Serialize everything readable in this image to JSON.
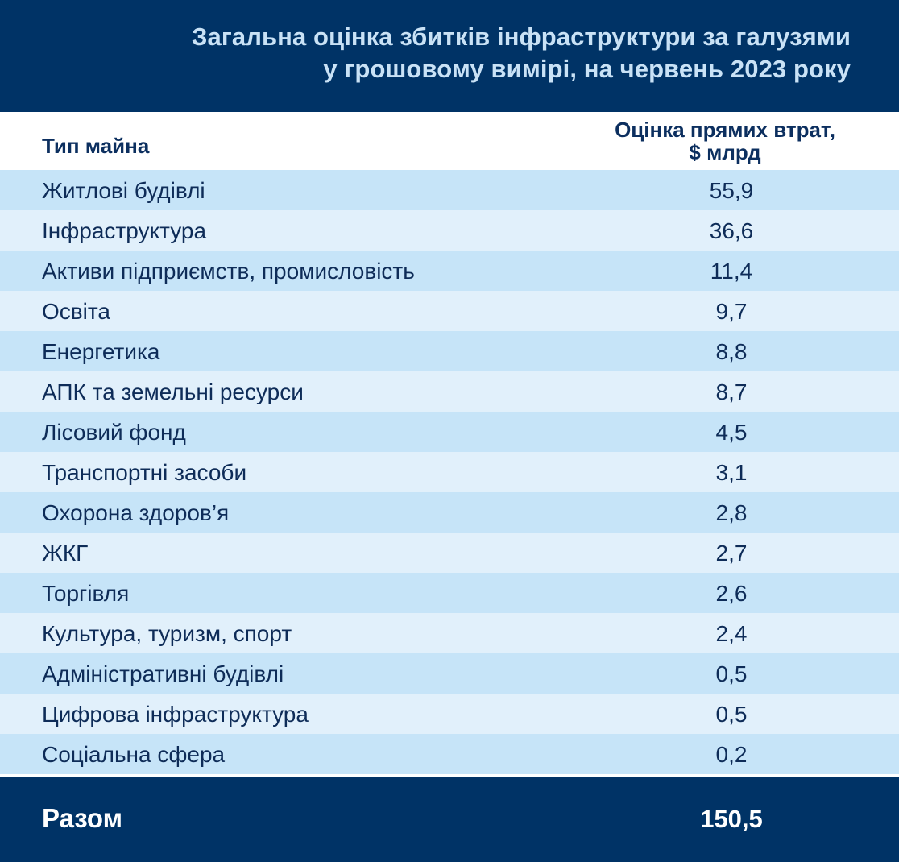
{
  "title": {
    "line1": "Загальна оцінка збитків інфраструктури за галузями",
    "line2": "у грошовому вимірі, на червень 2023 року"
  },
  "headers": {
    "type": "Тип майна",
    "value_line1": "Оцінка прямих втрат,",
    "value_line2": "$ млрд"
  },
  "total": {
    "label": "Разом",
    "value": "150,5"
  },
  "colors": {
    "header_bg": "#003366",
    "title_text": "#c9e2f6",
    "row_dark": "#c6e4f8",
    "row_light": "#e1f0fb",
    "text": "#0e2c58"
  },
  "chart_data": {
    "type": "table",
    "title": "Загальна оцінка збитків інфраструктури за галузями у грошовому вимірі, на червень 2023 року",
    "columns": [
      "Тип майна",
      "Оцінка прямих втрат, $ млрд"
    ],
    "rows": [
      {
        "label": "Житлові будівлі",
        "value": "55,9"
      },
      {
        "label": "Інфраструктура",
        "value": "36,6"
      },
      {
        "label": "Активи підприємств, промисловість",
        "value": "11,4"
      },
      {
        "label": "Освіта",
        "value": "9,7"
      },
      {
        "label": "Енергетика",
        "value": "8,8"
      },
      {
        "label": "АПК та земельні ресурси",
        "value": "8,7"
      },
      {
        "label": "Лісовий фонд",
        "value": "4,5"
      },
      {
        "label": "Транспортні засоби",
        "value": "3,1"
      },
      {
        "label": "Охорона здоров’я",
        "value": "2,8"
      },
      {
        "label": "ЖКГ",
        "value": "2,7"
      },
      {
        "label": "Торгівля",
        "value": "2,6"
      },
      {
        "label": "Культура, туризм, спорт",
        "value": "2,4"
      },
      {
        "label": "Адміністративні будівлі",
        "value": "0,5"
      },
      {
        "label": "Цифрова інфраструктура",
        "value": "0,5"
      },
      {
        "label": "Соціальна сфера",
        "value": "0,2"
      }
    ]
  }
}
